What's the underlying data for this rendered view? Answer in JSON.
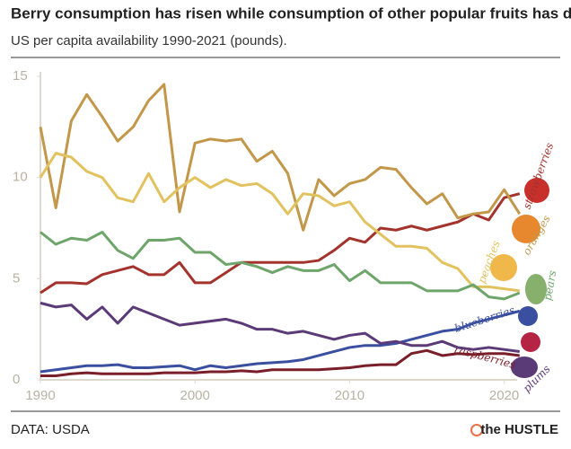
{
  "chart_data": {
    "type": "line",
    "title": "Berry consumption has risen while consumption of other popular fruits has declined",
    "subtitle": "US per capita availability 1990-2021 (pounds).",
    "source": "DATA: USDA",
    "brand": "the HUSTLE",
    "x": [
      1990,
      1991,
      1992,
      1993,
      1994,
      1995,
      1996,
      1997,
      1998,
      1999,
      2000,
      2001,
      2002,
      2003,
      2004,
      2005,
      2006,
      2007,
      2008,
      2009,
      2010,
      2011,
      2012,
      2013,
      2014,
      2015,
      2016,
      2017,
      2018,
      2019,
      2020,
      2021
    ],
    "xlim": [
      1990,
      2022
    ],
    "xticks": [
      1990,
      2000,
      2010,
      2020
    ],
    "ylim": [
      0,
      15
    ],
    "yticks": [
      0,
      5,
      10,
      15
    ],
    "series": [
      {
        "name": "strawberries",
        "color": "#a3332c",
        "values": [
          4.3,
          4.8,
          4.8,
          4.75,
          5.2,
          5.4,
          5.6,
          5.2,
          5.2,
          5.8,
          4.8,
          4.8,
          5.3,
          5.8,
          5.8,
          5.8,
          5.8,
          5.8,
          5.9,
          6.4,
          7.0,
          6.8,
          7.5,
          7.4,
          7.6,
          7.4,
          7.6,
          7.8,
          8.2,
          7.9,
          9.0,
          9.2
        ]
      },
      {
        "name": "oranges",
        "color": "#c2974a",
        "values": [
          12.5,
          8.5,
          12.8,
          14.1,
          13.0,
          11.8,
          12.5,
          13.8,
          14.6,
          8.3,
          11.7,
          11.9,
          11.8,
          11.9,
          10.8,
          11.3,
          10.2,
          7.4,
          9.9,
          9.1,
          9.7,
          9.9,
          10.5,
          10.4,
          9.5,
          8.7,
          9.2,
          8.0,
          8.2,
          8.3,
          9.4,
          8.2
        ]
      },
      {
        "name": "peaches",
        "color": "#e2c25e",
        "values": [
          10.0,
          11.2,
          11.0,
          10.3,
          10.0,
          9.0,
          8.8,
          10.2,
          8.8,
          9.5,
          10.0,
          9.5,
          9.9,
          9.6,
          9.7,
          9.2,
          8.2,
          9.2,
          9.1,
          8.6,
          8.8,
          7.8,
          7.2,
          6.6,
          6.6,
          6.5,
          5.8,
          5.5,
          4.6,
          4.6,
          4.5,
          4.4
        ]
      },
      {
        "name": "pears",
        "color": "#6ea56a",
        "values": [
          7.3,
          6.7,
          7.0,
          6.9,
          7.3,
          6.4,
          6.0,
          6.9,
          6.9,
          7.0,
          6.3,
          6.3,
          5.7,
          5.8,
          5.6,
          5.3,
          5.6,
          5.4,
          5.4,
          5.7,
          4.9,
          5.4,
          4.8,
          4.8,
          4.8,
          4.4,
          4.4,
          4.4,
          4.7,
          4.1,
          4.0,
          4.3
        ]
      },
      {
        "name": "blueberries",
        "color": "#3a4fa0",
        "values": [
          0.4,
          0.5,
          0.6,
          0.7,
          0.7,
          0.75,
          0.6,
          0.6,
          0.65,
          0.7,
          0.5,
          0.7,
          0.6,
          0.7,
          0.8,
          0.85,
          0.9,
          1.0,
          1.2,
          1.4,
          1.6,
          1.7,
          1.7,
          1.8,
          2.0,
          2.2,
          2.4,
          2.5,
          2.8,
          3.0,
          3.2,
          3.4
        ]
      },
      {
        "name": "raspberries",
        "color": "#7a1f2a",
        "values": [
          0.2,
          0.2,
          0.3,
          0.35,
          0.3,
          0.3,
          0.3,
          0.3,
          0.35,
          0.35,
          0.35,
          0.4,
          0.4,
          0.45,
          0.4,
          0.5,
          0.5,
          0.5,
          0.5,
          0.55,
          0.6,
          0.7,
          0.75,
          0.75,
          1.3,
          1.45,
          1.2,
          1.3,
          1.25,
          1.3,
          1.3,
          1.2
        ]
      },
      {
        "name": "plums",
        "color": "#5b3a78",
        "values": [
          3.8,
          3.6,
          3.7,
          3.0,
          3.6,
          2.8,
          3.6,
          3.3,
          3.0,
          2.7,
          2.8,
          2.9,
          3.0,
          2.8,
          2.5,
          2.5,
          2.3,
          2.4,
          2.2,
          2.0,
          2.2,
          2.3,
          1.8,
          1.9,
          1.7,
          1.7,
          1.9,
          1.6,
          1.5,
          1.6,
          1.5,
          1.4
        ]
      }
    ]
  }
}
